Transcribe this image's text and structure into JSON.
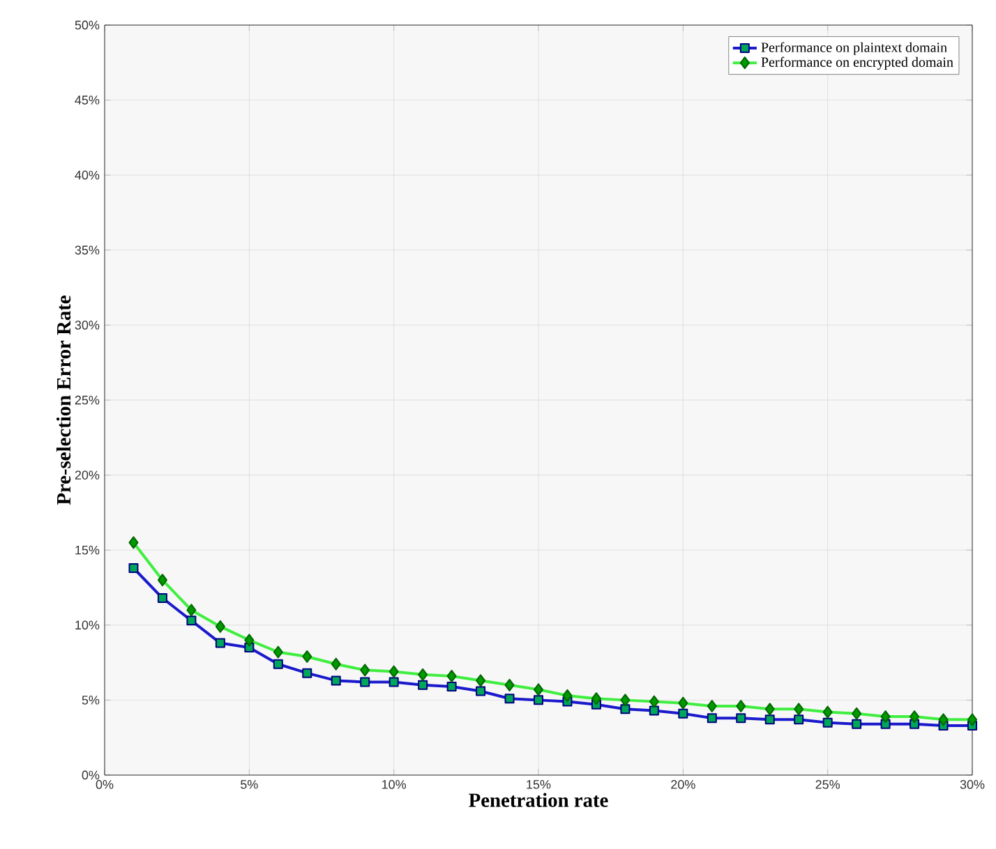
{
  "chart_data": {
    "type": "line",
    "xlabel": "Penetration rate",
    "ylabel": "Pre-selection Error Rate",
    "x": [
      1,
      2,
      3,
      4,
      5,
      6,
      7,
      8,
      9,
      10,
      11,
      12,
      13,
      14,
      15,
      16,
      17,
      18,
      19,
      20,
      21,
      22,
      23,
      24,
      25,
      26,
      27,
      28,
      29,
      30
    ],
    "series": [
      {
        "name": "Performance on plaintext domain",
        "color": "#1a1acc",
        "marker": "square",
        "values": [
          13.8,
          11.8,
          10.3,
          8.8,
          8.5,
          7.4,
          6.8,
          6.3,
          6.2,
          6.2,
          6.0,
          5.9,
          5.6,
          5.1,
          5.0,
          4.9,
          4.7,
          4.4,
          4.3,
          4.1,
          3.8,
          3.8,
          3.7,
          3.7,
          3.5,
          3.4,
          3.4,
          3.4,
          3.3,
          3.3
        ]
      },
      {
        "name": "Performance on encrypted domain",
        "color": "#40ee40",
        "marker": "diamond",
        "values": [
          15.5,
          13.0,
          11.0,
          9.9,
          9.0,
          8.2,
          7.9,
          7.4,
          7.0,
          6.9,
          6.7,
          6.6,
          6.3,
          6.0,
          5.7,
          5.3,
          5.1,
          5.0,
          4.9,
          4.8,
          4.6,
          4.6,
          4.4,
          4.4,
          4.2,
          4.1,
          3.9,
          3.9,
          3.7,
          3.7
        ]
      }
    ],
    "xlim": [
      0,
      30
    ],
    "xticks": [
      {
        "value": 0,
        "label": "0%"
      },
      {
        "value": 5,
        "label": "5%"
      },
      {
        "value": 10,
        "label": "10%"
      },
      {
        "value": 15,
        "label": "15%"
      },
      {
        "value": 20,
        "label": "20%"
      },
      {
        "value": 25,
        "label": "25%"
      },
      {
        "value": 30,
        "label": "30%"
      }
    ],
    "ylim": [
      0,
      50
    ],
    "yticks": [
      {
        "value": 0,
        "label": "0%"
      },
      {
        "value": 5,
        "label": "5%"
      },
      {
        "value": 10,
        "label": "10%"
      },
      {
        "value": 15,
        "label": "15%"
      },
      {
        "value": 20,
        "label": "20%"
      },
      {
        "value": 25,
        "label": "25%"
      },
      {
        "value": 30,
        "label": "30%"
      },
      {
        "value": 35,
        "label": "35%"
      },
      {
        "value": 40,
        "label": "40%"
      },
      {
        "value": 45,
        "label": "45%"
      },
      {
        "value": 50,
        "label": "50%"
      }
    ],
    "grid": true,
    "legend": "top right",
    "line_style": "solid"
  }
}
